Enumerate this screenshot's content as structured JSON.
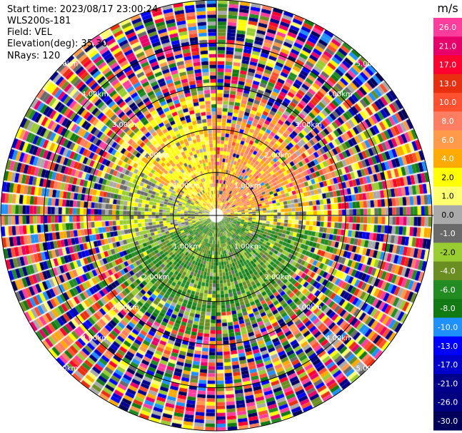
{
  "header": {
    "start_time": "Start time: 2023/08/17 23:00:24",
    "site": "WLS200s-181",
    "field": "Field: VEL",
    "elevation": "Elevation(deg): 35.30",
    "nrays": "NRays: 120"
  },
  "chart_data": {
    "type": "heatmap",
    "subtype": "ppi-polar",
    "field": "VEL",
    "n_rays": 120,
    "max_range_km": 5.0,
    "range_rings_km": [
      1.0,
      2.0,
      3.0,
      4.0,
      5.0
    ],
    "range_ring_labels": [
      "1.00km",
      "2.00km",
      "3.00km",
      "4.00km",
      "5.00km"
    ],
    "colorbar": {
      "unit": "m/s",
      "tick_labels": [
        "26.0",
        "21.0",
        "17.0",
        "13.0",
        "10.0",
        "8.0",
        "6.0",
        "4.0",
        "2.0",
        "1.0",
        "0.0",
        "-1.0",
        "-2.0",
        "-4.0",
        "-6.0",
        "-8.0",
        "-10.0",
        "-13.0",
        "-17.0",
        "-21.0",
        "-26.0",
        "-30.0"
      ],
      "colors": [
        "#ff3d9d",
        "#e8006a",
        "#ff0030",
        "#e83010",
        "#ff5030",
        "#ff7d60",
        "#ff9a4a",
        "#ffaa00",
        "#ffff00",
        "#ffff70",
        "#aaaaaa",
        "#6a6a6a",
        "#9acd32",
        "#6b8e23",
        "#228b22",
        "#127a12",
        "#1e90ff",
        "#0000ff",
        "#0000cd",
        "#00008b",
        "#000080",
        "#00005a"
      ]
    },
    "description_regions": {
      "north": "yellow/orange (positive ~2 to 8 m/s)",
      "south": "green (negative ~-4 to -8 m/s)",
      "east": "orange/yellow",
      "west": "yellow-green/gray",
      "outer": "noisy random colors beyond ~2.5 km"
    }
  }
}
